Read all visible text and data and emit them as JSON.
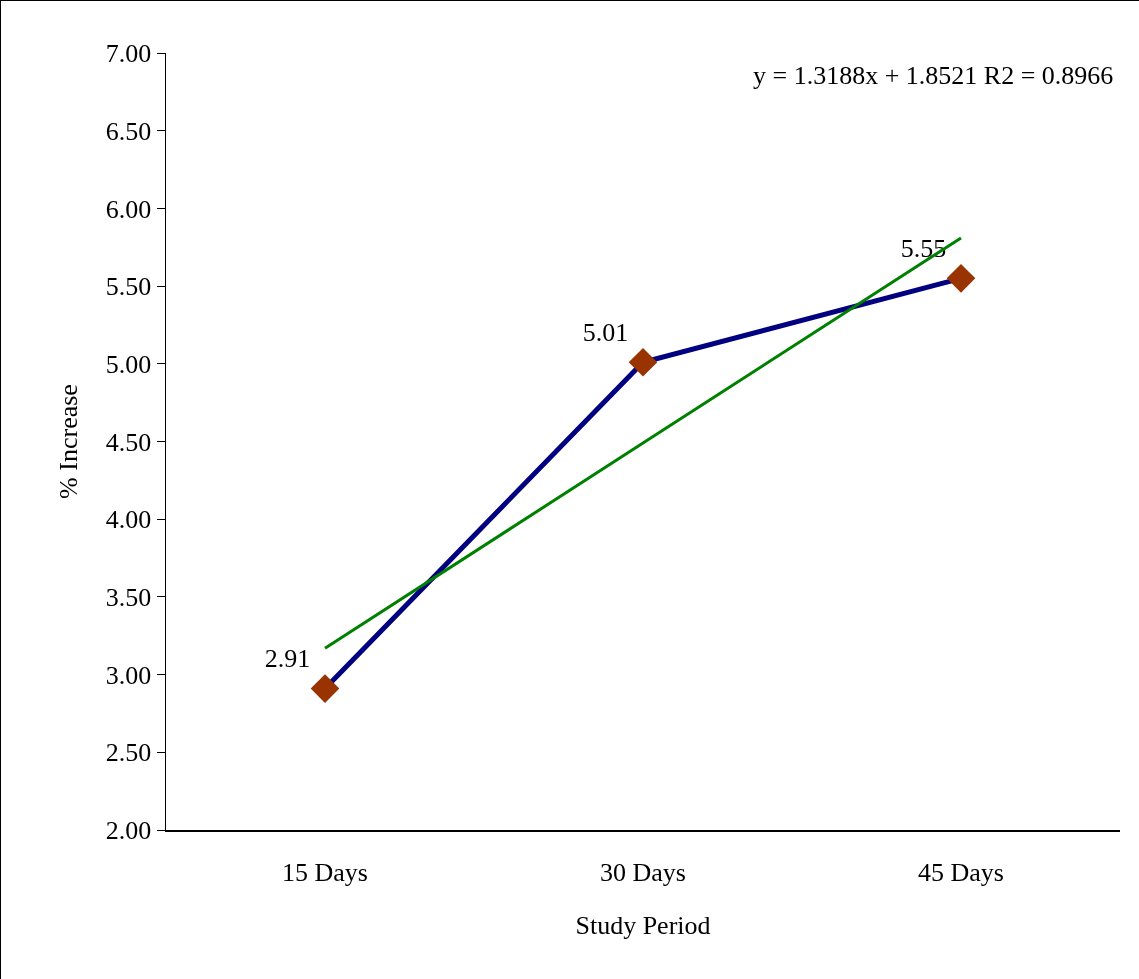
{
  "chart_data": {
    "type": "line",
    "xlabel": "Study Period",
    "ylabel": "% Increase",
    "categories": [
      "15 Days",
      "30 Days",
      "45 Days"
    ],
    "series": [
      {
        "color": "#000080",
        "values": [
          2.91,
          5.01,
          5.55
        ],
        "marker": "diamond",
        "colors": [
          "#993300",
          "#993300",
          "#993300"
        ],
        "value_labels": [
          "2.91",
          "5.01",
          "5.55"
        ]
      },
      {
        "type": "line",
        "color": "#008000",
        "values": [
          3.17,
          4.49,
          5.81
        ],
        "marker": "none"
      }
    ],
    "ylim": [
      2,
      7
    ],
    "yticks": [
      {
        "value": 2,
        "label": "2.00"
      },
      {
        "value": 2.5,
        "label": "2.50"
      },
      {
        "value": 3,
        "label": "3.00"
      },
      {
        "value": 3.5,
        "label": "3.50"
      },
      {
        "value": 4,
        "label": "4.00"
      },
      {
        "value": 4.5,
        "label": "4.50"
      },
      {
        "value": 5,
        "label": "5.00"
      },
      {
        "value": 5.5,
        "label": "5.50"
      },
      {
        "value": 6,
        "label": "6.00"
      },
      {
        "value": 6.5,
        "label": "6.50"
      },
      {
        "value": 7,
        "label": "7.00"
      }
    ],
    "annotations": [
      "y = 1.3188x + 1.8521 R2 = 0.8966"
    ],
    "grid": false,
    "line_style": "solid"
  }
}
